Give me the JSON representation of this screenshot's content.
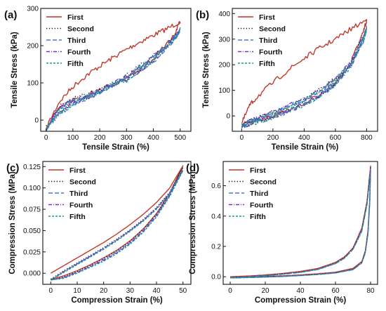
{
  "colors": {
    "First": "#c0392b",
    "Second": "#111111",
    "Third": "#3b7fd6",
    "Fourth": "#7a2fd0",
    "Fifth": "#159f8c"
  },
  "chart_data": [
    {
      "type": "line",
      "panel_label": "(a)",
      "xlabel": "Tensile Strain (%)",
      "ylabel": "Tensile Stress (kPa)",
      "xlim": [
        -20,
        540
      ],
      "ylim": [
        -30,
        300
      ],
      "xticks": [
        0,
        100,
        200,
        300,
        400,
        500
      ],
      "yticks": [
        0,
        100,
        200,
        300
      ],
      "legend_position": "top-left",
      "noise": 7,
      "series": [
        {
          "name": "First",
          "style": "solid",
          "x": [
            0,
            50,
            100,
            150,
            200,
            250,
            300,
            350,
            400,
            450,
            500,
            480,
            400,
            300,
            200,
            100,
            50,
            0
          ],
          "y": [
            -20,
            50,
            90,
            120,
            145,
            168,
            190,
            210,
            228,
            245,
            265,
            230,
            165,
            110,
            80,
            55,
            35,
            -20
          ]
        },
        {
          "name": "Second",
          "style": "dotted",
          "x": [
            0,
            50,
            100,
            150,
            200,
            250,
            300,
            350,
            400,
            450,
            500,
            480,
            400,
            300,
            200,
            100,
            50,
            0
          ],
          "y": [
            -25,
            20,
            45,
            60,
            78,
            98,
            120,
            145,
            170,
            200,
            245,
            220,
            160,
            110,
            80,
            55,
            35,
            -25
          ]
        },
        {
          "name": "Third",
          "style": "dashed",
          "x": [
            0,
            50,
            100,
            150,
            200,
            250,
            300,
            350,
            400,
            450,
            500,
            480,
            400,
            300,
            200,
            100,
            50,
            0
          ],
          "y": [
            -25,
            18,
            43,
            58,
            76,
            96,
            118,
            142,
            168,
            198,
            242,
            218,
            158,
            108,
            78,
            53,
            33,
            -25
          ]
        },
        {
          "name": "Fourth",
          "style": "dashdot",
          "x": [
            0,
            50,
            100,
            150,
            200,
            250,
            300,
            350,
            400,
            450,
            500,
            480,
            400,
            300,
            200,
            100,
            50,
            0
          ],
          "y": [
            -25,
            19,
            44,
            59,
            77,
            97,
            119,
            143,
            169,
            199,
            244,
            219,
            159,
            109,
            79,
            54,
            34,
            -25
          ]
        },
        {
          "name": "Fifth",
          "style": "dashed2",
          "x": [
            0,
            50,
            100,
            150,
            200,
            250,
            300,
            350,
            400,
            450,
            500,
            480,
            400,
            300,
            200,
            100,
            50,
            0
          ],
          "y": [
            -25,
            17,
            42,
            57,
            75,
            95,
            117,
            141,
            167,
            197,
            240,
            217,
            157,
            107,
            77,
            52,
            32,
            -25
          ]
        }
      ]
    },
    {
      "type": "line",
      "panel_label": "(b)",
      "xlabel": "Tensile Strain (%)",
      "ylabel": "Tensile Stress (kPa)",
      "xlim": [
        -60,
        870
      ],
      "ylim": [
        -60,
        420
      ],
      "xticks": [
        0,
        200,
        400,
        600,
        800
      ],
      "yticks": [
        0,
        100,
        200,
        300,
        400
      ],
      "legend_position": "top-left",
      "noise": 7,
      "series": [
        {
          "name": "First",
          "style": "solid",
          "x": [
            0,
            50,
            100,
            200,
            300,
            400,
            500,
            600,
            700,
            800,
            780,
            700,
            600,
            500,
            400,
            300,
            200,
            100,
            0
          ],
          "y": [
            -30,
            40,
            75,
            130,
            180,
            225,
            265,
            300,
            340,
            375,
            330,
            210,
            130,
            80,
            50,
            25,
            0,
            -20,
            -30
          ]
        },
        {
          "name": "Second",
          "style": "dotted",
          "x": [
            0,
            50,
            100,
            200,
            300,
            400,
            500,
            600,
            700,
            800,
            780,
            700,
            600,
            500,
            400,
            300,
            200,
            100,
            0
          ],
          "y": [
            -40,
            -20,
            -10,
            15,
            40,
            65,
            100,
            145,
            210,
            345,
            300,
            200,
            125,
            78,
            48,
            23,
            -2,
            -22,
            -40
          ]
        },
        {
          "name": "Third",
          "style": "dashed",
          "x": [
            0,
            50,
            100,
            200,
            300,
            400,
            500,
            600,
            700,
            800,
            780,
            700,
            600,
            500,
            400,
            300,
            200,
            100,
            0
          ],
          "y": [
            -40,
            -22,
            -12,
            13,
            38,
            63,
            98,
            142,
            206,
            340,
            297,
            197,
            123,
            76,
            46,
            21,
            -4,
            -24,
            -40
          ]
        },
        {
          "name": "Fourth",
          "style": "dashdot",
          "x": [
            0,
            50,
            100,
            200,
            300,
            400,
            500,
            600,
            700,
            800,
            780,
            700,
            600,
            500,
            400,
            300,
            200,
            100,
            0
          ],
          "y": [
            -40,
            -21,
            -11,
            14,
            39,
            64,
            99,
            143,
            208,
            342,
            298,
            198,
            124,
            77,
            47,
            22,
            -3,
            -23,
            -40
          ]
        },
        {
          "name": "Fifth",
          "style": "dashed2",
          "x": [
            0,
            50,
            100,
            200,
            300,
            400,
            500,
            600,
            700,
            800,
            780,
            700,
            600,
            500,
            400,
            300,
            200,
            100,
            0
          ],
          "y": [
            -40,
            -23,
            -13,
            12,
            37,
            62,
            97,
            141,
            205,
            338,
            296,
            196,
            122,
            75,
            45,
            20,
            -5,
            -25,
            -40
          ]
        }
      ]
    },
    {
      "type": "line",
      "panel_label": "(c)",
      "xlabel": "Compression Strain (%)",
      "ylabel": "Compression Stress (MPa)",
      "xlim": [
        -3,
        53
      ],
      "ylim": [
        -0.013,
        0.131
      ],
      "xticks": [
        0,
        10,
        20,
        30,
        40,
        50
      ],
      "yticks": [
        0.0,
        0.025,
        0.05,
        0.075,
        0.1,
        0.125
      ],
      "ytick_labels": [
        "0.000",
        "0.025",
        "0.050",
        "0.075",
        "0.100",
        "0.125"
      ],
      "legend_position": "top-left",
      "noise": 0,
      "series": [
        {
          "name": "First",
          "style": "solid",
          "x": [
            0,
            5,
            10,
            15,
            20,
            25,
            30,
            35,
            40,
            45,
            50,
            45,
            40,
            35,
            30,
            25,
            20,
            15,
            10,
            5,
            0
          ],
          "y": [
            0.0,
            0.009,
            0.018,
            0.027,
            0.036,
            0.046,
            0.057,
            0.069,
            0.083,
            0.1,
            0.126,
            0.094,
            0.07,
            0.052,
            0.038,
            0.027,
            0.018,
            0.01,
            0.003,
            -0.003,
            -0.007
          ]
        },
        {
          "name": "Second",
          "style": "dotted",
          "x": [
            0,
            5,
            10,
            15,
            20,
            25,
            30,
            35,
            40,
            45,
            50,
            45,
            40,
            35,
            30,
            25,
            20,
            15,
            10,
            5,
            0
          ],
          "y": [
            -0.007,
            0.003,
            0.012,
            0.021,
            0.03,
            0.04,
            0.051,
            0.063,
            0.077,
            0.095,
            0.124,
            0.093,
            0.069,
            0.051,
            0.037,
            0.026,
            0.017,
            0.009,
            0.002,
            -0.004,
            -0.008
          ]
        },
        {
          "name": "Third",
          "style": "dashed",
          "x": [
            0,
            5,
            10,
            15,
            20,
            25,
            30,
            35,
            40,
            45,
            50,
            45,
            40,
            35,
            30,
            25,
            20,
            15,
            10,
            5,
            0
          ],
          "y": [
            -0.008,
            0.002,
            0.011,
            0.02,
            0.029,
            0.039,
            0.05,
            0.062,
            0.076,
            0.094,
            0.122,
            0.092,
            0.068,
            0.05,
            0.036,
            0.025,
            0.016,
            0.008,
            0.001,
            -0.005,
            -0.008
          ]
        },
        {
          "name": "Fourth",
          "style": "dashdot",
          "x": [
            0,
            5,
            10,
            15,
            20,
            25,
            30,
            35,
            40,
            45,
            50,
            45,
            40,
            35,
            30,
            25,
            20,
            15,
            10,
            5,
            0
          ],
          "y": [
            -0.008,
            0.002,
            0.011,
            0.02,
            0.029,
            0.039,
            0.05,
            0.062,
            0.076,
            0.094,
            0.121,
            0.091,
            0.067,
            0.049,
            0.035,
            0.024,
            0.015,
            0.008,
            0.001,
            -0.005,
            -0.008
          ]
        },
        {
          "name": "Fifth",
          "style": "dashed2",
          "x": [
            0,
            5,
            10,
            15,
            20,
            25,
            30,
            35,
            40,
            45,
            50,
            45,
            40,
            35,
            30,
            25,
            20,
            15,
            10,
            5,
            0
          ],
          "y": [
            -0.008,
            0.001,
            0.01,
            0.019,
            0.028,
            0.038,
            0.049,
            0.061,
            0.075,
            0.093,
            0.12,
            0.09,
            0.066,
            0.048,
            0.034,
            0.023,
            0.014,
            0.007,
            0.0,
            -0.006,
            -0.008
          ]
        }
      ]
    },
    {
      "type": "line",
      "panel_label": "(d)",
      "xlabel": "Compression Strain (%)",
      "ylabel": "Compression Stress (MPa)",
      "xlim": [
        -4,
        84
      ],
      "ylim": [
        -0.05,
        0.76
      ],
      "xticks": [
        0,
        20,
        40,
        60,
        80
      ],
      "yticks": [
        0.0,
        0.2,
        0.4,
        0.6
      ],
      "ytick_labels": [
        "0.0",
        "0.2",
        "0.4",
        "0.6"
      ],
      "legend_position": "top-left",
      "noise": 0,
      "series": [
        {
          "name": "First",
          "style": "solid",
          "x": [
            0,
            10,
            20,
            30,
            40,
            50,
            60,
            65,
            70,
            75,
            78,
            80,
            79.5,
            78.5,
            77,
            75,
            70,
            60,
            50,
            40,
            30,
            20,
            10,
            0
          ],
          "y": [
            0.0,
            0.005,
            0.012,
            0.022,
            0.035,
            0.055,
            0.095,
            0.13,
            0.19,
            0.32,
            0.5,
            0.73,
            0.5,
            0.3,
            0.17,
            0.1,
            0.055,
            0.03,
            0.02,
            0.012,
            0.006,
            0.002,
            -0.002,
            -0.005
          ]
        },
        {
          "name": "Second",
          "style": "dotted",
          "x": [
            0,
            10,
            20,
            30,
            40,
            50,
            60,
            65,
            70,
            75,
            78,
            80,
            79.5,
            78.5,
            77,
            75,
            70,
            60,
            50,
            40,
            30,
            20,
            10,
            0
          ],
          "y": [
            -0.005,
            0.0,
            0.008,
            0.018,
            0.03,
            0.05,
            0.09,
            0.125,
            0.185,
            0.31,
            0.49,
            0.72,
            0.49,
            0.29,
            0.165,
            0.095,
            0.05,
            0.027,
            0.017,
            0.01,
            0.004,
            0.0,
            -0.004,
            -0.007
          ]
        },
        {
          "name": "Third",
          "style": "dashed",
          "x": [
            0,
            10,
            20,
            30,
            40,
            50,
            60,
            65,
            70,
            75,
            78,
            80,
            79.5,
            78.5,
            77,
            75,
            70,
            60,
            50,
            40,
            30,
            20,
            10,
            0
          ],
          "y": [
            -0.006,
            -0.001,
            0.007,
            0.017,
            0.029,
            0.049,
            0.088,
            0.123,
            0.183,
            0.305,
            0.485,
            0.71,
            0.485,
            0.285,
            0.16,
            0.093,
            0.048,
            0.026,
            0.016,
            0.009,
            0.003,
            -0.001,
            -0.005,
            -0.008
          ]
        },
        {
          "name": "Fourth",
          "style": "dashdot",
          "x": [
            0,
            10,
            20,
            30,
            40,
            50,
            60,
            65,
            70,
            75,
            78,
            80,
            79.5,
            78.5,
            77,
            75,
            70,
            60,
            50,
            40,
            30,
            20,
            10,
            0
          ],
          "y": [
            -0.006,
            -0.001,
            0.007,
            0.017,
            0.029,
            0.048,
            0.087,
            0.122,
            0.182,
            0.3,
            0.48,
            0.7,
            0.48,
            0.28,
            0.158,
            0.092,
            0.047,
            0.025,
            0.015,
            0.008,
            0.002,
            -0.002,
            -0.005,
            -0.008
          ]
        },
        {
          "name": "Fifth",
          "style": "dashed2",
          "x": [
            0,
            10,
            20,
            30,
            40,
            50,
            60,
            65,
            70,
            75,
            78,
            80,
            79.5,
            78.5,
            77,
            75,
            70,
            60,
            50,
            40,
            30,
            20,
            10,
            0
          ],
          "y": [
            -0.007,
            -0.002,
            0.006,
            0.016,
            0.028,
            0.047,
            0.086,
            0.12,
            0.18,
            0.298,
            0.475,
            0.69,
            0.475,
            0.275,
            0.155,
            0.09,
            0.046,
            0.024,
            0.014,
            0.007,
            0.001,
            -0.003,
            -0.006,
            -0.009
          ]
        }
      ]
    }
  ]
}
